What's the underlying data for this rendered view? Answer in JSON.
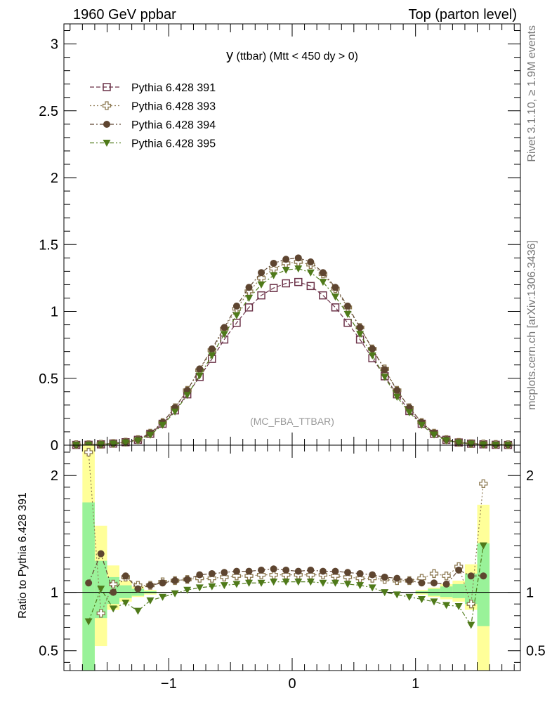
{
  "header": {
    "left": "1960 GeV ppbar",
    "right": "Top (parton level)"
  },
  "side_text": {
    "rivet": "Rivet 3.1.10, ≥ 1.9M events",
    "mcplots": "mcplots.cern.ch [arXiv:1306.3436]"
  },
  "chart_data": [
    {
      "type": "line",
      "title": "y (ttbar) (Mtt < 450 dy > 0)",
      "title_main": "y",
      "title_rest": " (ttbar) (Mtt < 450 dy > 0)",
      "watermark": "(MC_FBA_TTBAR)",
      "xlim": [
        -1.85,
        1.85
      ],
      "ylim": [
        0,
        3.15
      ],
      "yticks": [
        0,
        0.5,
        1,
        1.5,
        2,
        2.5,
        3
      ],
      "ytick_labels": [
        "0",
        "0.5",
        "1",
        "1.5",
        "2",
        "2.5",
        "3"
      ],
      "legend_position": "top-left",
      "x": [
        -1.75,
        -1.65,
        -1.55,
        -1.45,
        -1.35,
        -1.25,
        -1.15,
        -1.05,
        -0.95,
        -0.85,
        -0.75,
        -0.65,
        -0.55,
        -0.45,
        -0.35,
        -0.25,
        -0.15,
        -0.05,
        0.05,
        0.15,
        0.25,
        0.35,
        0.45,
        0.55,
        0.65,
        0.75,
        0.85,
        0.95,
        1.05,
        1.15,
        1.25,
        1.35,
        1.45,
        1.55,
        1.65,
        1.75
      ],
      "series": [
        {
          "name": "Pythia 6.428 391",
          "color": "#6b3248",
          "linestyle": "dashed",
          "marker": "open-square",
          "values": [
            0.002,
            0.003,
            0.006,
            0.012,
            0.022,
            0.04,
            0.085,
            0.16,
            0.26,
            0.38,
            0.51,
            0.645,
            0.79,
            0.915,
            1.03,
            1.12,
            1.175,
            1.21,
            1.22,
            1.19,
            1.12,
            1.03,
            0.915,
            0.79,
            0.65,
            0.515,
            0.38,
            0.255,
            0.16,
            0.085,
            0.04,
            0.02,
            0.011,
            0.006,
            0.003,
            0.002
          ]
        },
        {
          "name": "Pythia 6.428 393",
          "color": "#8c7850",
          "linestyle": "dotted",
          "marker": "open-cross",
          "values": [
            0.004,
            0.004,
            0.007,
            0.013,
            0.023,
            0.042,
            0.09,
            0.17,
            0.28,
            0.41,
            0.56,
            0.71,
            0.87,
            1.02,
            1.15,
            1.25,
            1.32,
            1.36,
            1.37,
            1.35,
            1.28,
            1.17,
            1.03,
            0.88,
            0.72,
            0.57,
            0.41,
            0.28,
            0.17,
            0.09,
            0.042,
            0.021,
            0.012,
            0.009,
            0.006,
            0.004
          ]
        },
        {
          "name": "Pythia 6.428 394",
          "color": "#5e4530",
          "linestyle": "dashdot",
          "marker": "filled-circle",
          "values": [
            0.002,
            0.004,
            0.006,
            0.013,
            0.024,
            0.042,
            0.09,
            0.17,
            0.28,
            0.41,
            0.57,
            0.72,
            0.88,
            1.04,
            1.18,
            1.29,
            1.36,
            1.39,
            1.4,
            1.37,
            1.29,
            1.18,
            1.04,
            0.88,
            0.72,
            0.565,
            0.41,
            0.28,
            0.17,
            0.09,
            0.042,
            0.021,
            0.012,
            0.007,
            0.004,
            0.002
          ]
        },
        {
          "name": "Pythia 6.428 395",
          "color": "#4f7a1a",
          "linestyle": "dashdot",
          "marker": "filled-triangle-down",
          "values": [
            0.001,
            0.002,
            0.005,
            0.01,
            0.019,
            0.034,
            0.077,
            0.15,
            0.25,
            0.375,
            0.52,
            0.67,
            0.83,
            0.97,
            1.1,
            1.2,
            1.27,
            1.31,
            1.32,
            1.29,
            1.22,
            1.11,
            0.98,
            0.83,
            0.67,
            0.51,
            0.36,
            0.245,
            0.15,
            0.078,
            0.035,
            0.018,
            0.01,
            0.004,
            0.002,
            0.001
          ]
        }
      ]
    },
    {
      "type": "line",
      "ylabel": "Ratio to Pythia 6.428 391",
      "xlim": [
        -1.85,
        1.85
      ],
      "ylim": [
        0.33,
        2.26
      ],
      "xticks": [
        -1,
        0,
        1
      ],
      "xtick_labels": [
        "−1",
        "0",
        "1"
      ],
      "yticks": [
        0.5,
        1,
        2
      ],
      "ytick_labels": [
        "0.5",
        "1",
        "2"
      ],
      "reference_line": 1,
      "band_colors": {
        "outer": "#ffff99",
        "inner": "#99f299"
      },
      "bands": [
        {
          "x0": -1.7,
          "x1": -1.6,
          "outer": [
            0.33,
            2.26
          ],
          "inner": [
            0.33,
            1.77
          ]
        },
        {
          "x0": -1.6,
          "x1": -1.5,
          "outer": [
            0.54,
            1.57
          ],
          "inner": [
            0.78,
            1.27
          ]
        },
        {
          "x0": -1.5,
          "x1": -1.4,
          "outer": [
            0.85,
            1.23
          ],
          "inner": [
            0.9,
            1.13
          ]
        },
        {
          "x0": -1.4,
          "x1": -1.3,
          "outer": [
            0.92,
            1.1
          ],
          "inner": [
            0.95,
            1.06
          ]
        },
        {
          "x0": -1.3,
          "x1": -1.2,
          "outer": [
            0.96,
            1.05
          ],
          "inner": [
            0.97,
            1.03
          ]
        },
        {
          "x0": -1.2,
          "x1": -1.1,
          "outer": [
            0.98,
            1.02
          ],
          "inner": [
            0.99,
            1.01
          ]
        },
        {
          "x0": 1.0,
          "x1": 1.1,
          "outer": [
            0.98,
            1.02
          ],
          "inner": [
            0.99,
            1.01
          ]
        },
        {
          "x0": 1.1,
          "x1": 1.2,
          "outer": [
            0.96,
            1.04
          ],
          "inner": [
            0.97,
            1.03
          ]
        },
        {
          "x0": 1.2,
          "x1": 1.3,
          "outer": [
            0.94,
            1.07
          ],
          "inner": [
            0.96,
            1.05
          ]
        },
        {
          "x0": 1.3,
          "x1": 1.4,
          "outer": [
            0.92,
            1.1
          ],
          "inner": [
            0.95,
            1.07
          ]
        },
        {
          "x0": 1.4,
          "x1": 1.5,
          "outer": [
            0.85,
            1.24
          ],
          "inner": [
            0.9,
            1.16
          ]
        },
        {
          "x0": 1.5,
          "x1": 1.6,
          "outer": [
            0.33,
            1.75
          ],
          "inner": [
            0.71,
            1.42
          ]
        }
      ],
      "x": [
        -1.65,
        -1.55,
        -1.45,
        -1.35,
        -1.25,
        -1.15,
        -1.05,
        -0.95,
        -0.85,
        -0.75,
        -0.65,
        -0.55,
        -0.45,
        -0.35,
        -0.25,
        -0.15,
        -0.05,
        0.05,
        0.15,
        0.25,
        0.35,
        0.45,
        0.55,
        0.65,
        0.75,
        0.85,
        0.95,
        1.05,
        1.15,
        1.25,
        1.35,
        1.45,
        1.55
      ],
      "series": [
        {
          "name": "Pythia 6.428 393",
          "color": "#8c7850",
          "linestyle": "dotted",
          "marker": "open-cross",
          "values": [
            2.2,
            0.82,
            1.07,
            1.13,
            1.06,
            1.06,
            1.09,
            1.1,
            1.11,
            1.12,
            1.12,
            1.13,
            1.14,
            1.14,
            1.15,
            1.15,
            1.15,
            1.15,
            1.15,
            1.15,
            1.14,
            1.13,
            1.12,
            1.12,
            1.11,
            1.1,
            1.1,
            1.12,
            1.16,
            1.14,
            1.22,
            0.9,
            1.93
          ]
        },
        {
          "name": "Pythia 6.428 394",
          "color": "#5e4530",
          "linestyle": "dashdot",
          "marker": "filled-circle",
          "values": [
            1.08,
            1.33,
            1.0,
            1.14,
            1.03,
            1.06,
            1.08,
            1.1,
            1.11,
            1.15,
            1.16,
            1.17,
            1.18,
            1.18,
            1.19,
            1.2,
            1.19,
            1.18,
            1.19,
            1.18,
            1.18,
            1.17,
            1.16,
            1.15,
            1.13,
            1.12,
            1.1,
            1.08,
            1.08,
            1.07,
            1.19,
            1.14,
            1.14
          ]
        },
        {
          "name": "Pythia 6.428 395",
          "color": "#4f7a1a",
          "linestyle": "dashdot",
          "marker": "filled-triangle-down",
          "values": [
            0.75,
            1.03,
            0.86,
            0.91,
            0.84,
            0.93,
            0.96,
            0.99,
            1.02,
            1.04,
            1.05,
            1.06,
            1.07,
            1.08,
            1.08,
            1.09,
            1.09,
            1.09,
            1.09,
            1.08,
            1.08,
            1.07,
            1.06,
            1.04,
            1.0,
            0.98,
            0.96,
            0.94,
            0.92,
            0.89,
            0.88,
            0.72,
            1.4
          ]
        }
      ]
    }
  ]
}
